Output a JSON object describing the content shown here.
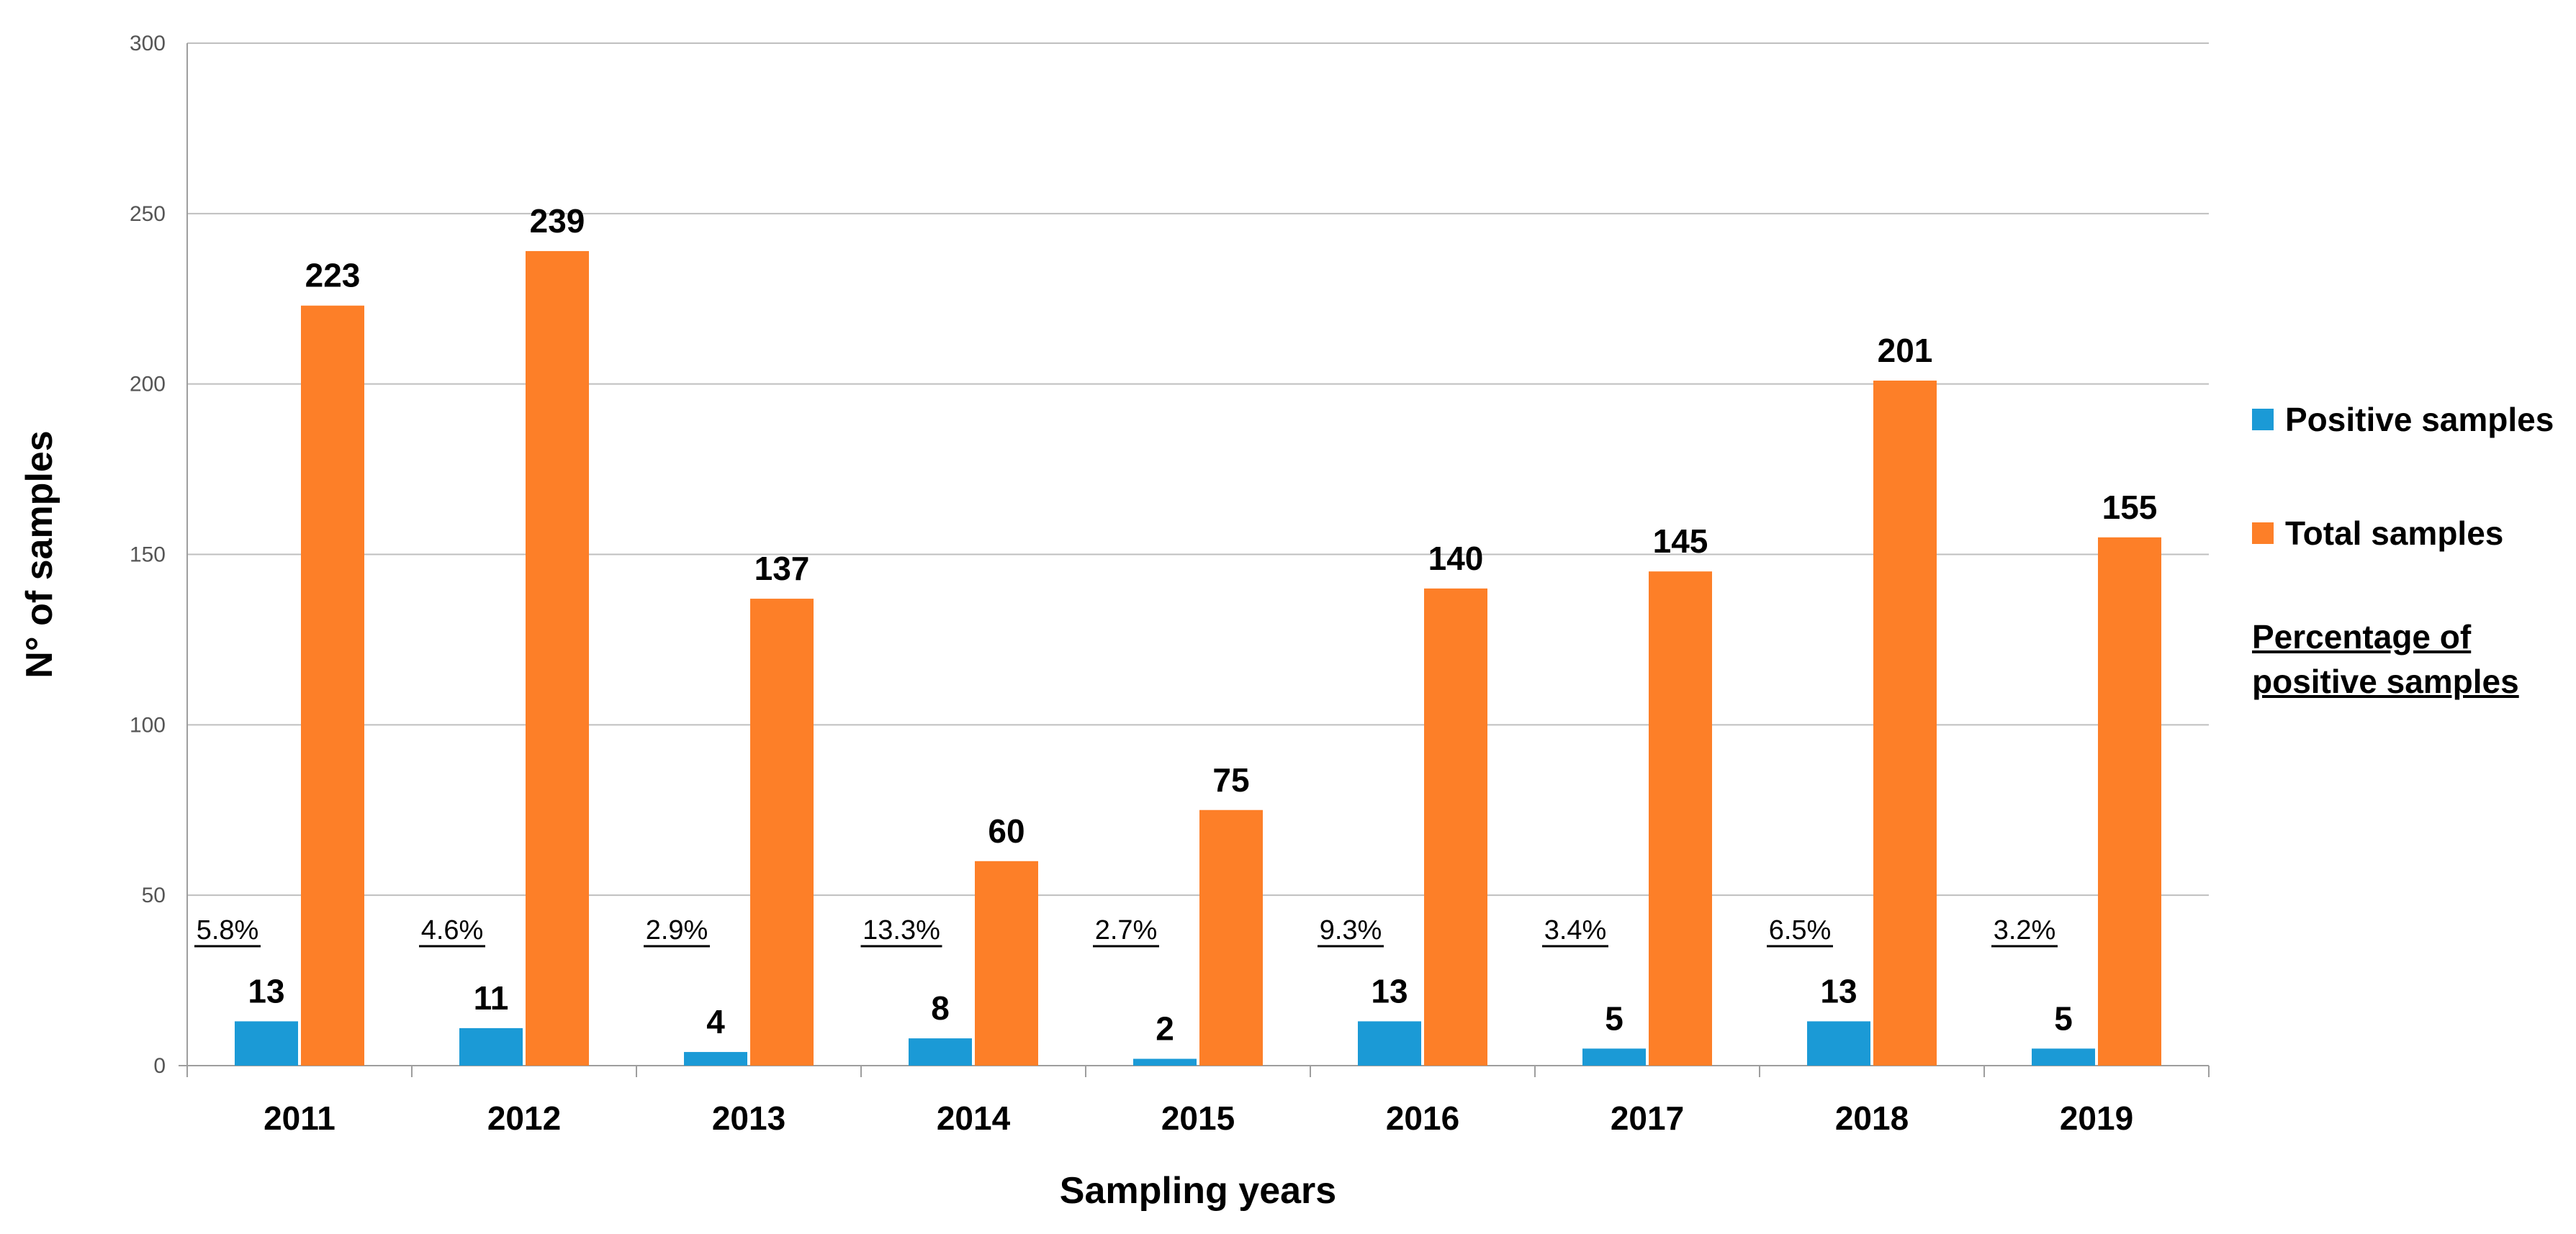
{
  "chart_data": {
    "type": "bar",
    "title": "",
    "xlabel": "Sampling years",
    "ylabel": "N° of samples",
    "ylim": [
      0,
      300
    ],
    "yticks": [
      0,
      50,
      100,
      150,
      200,
      250,
      300
    ],
    "grid": true,
    "legend_position": "right",
    "categories": [
      "2011",
      "2012",
      "2013",
      "2014",
      "2015",
      "2016",
      "2017",
      "2018",
      "2019"
    ],
    "series": [
      {
        "name": "Positive samples",
        "color": "#1b9ad6",
        "values": [
          13,
          11,
          4,
          8,
          2,
          13,
          5,
          13,
          5
        ]
      },
      {
        "name": "Total samples",
        "color": "#fd7f28",
        "values": [
          223,
          239,
          137,
          60,
          75,
          140,
          145,
          201,
          155
        ]
      }
    ],
    "percentages": [
      "5.8%",
      "4.6%",
      "2.9%",
      "13.3%",
      "2.7%",
      "9.3%",
      "3.4%",
      "6.5%",
      "3.2%"
    ],
    "percentage_legend_line1": "Percentage of",
    "percentage_legend_line2": "positive samples"
  }
}
